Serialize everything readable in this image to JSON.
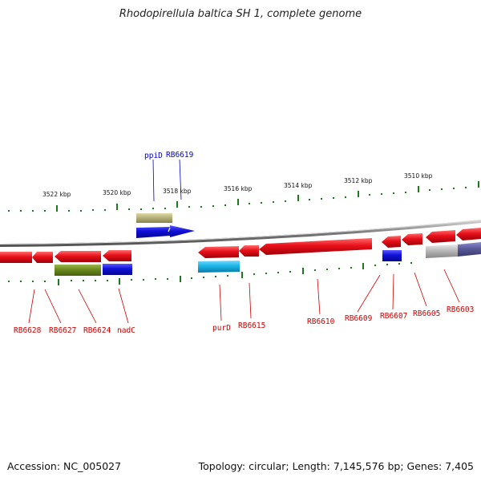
{
  "title": "Rhodopirellula baltica SH 1, complete genome",
  "footer": {
    "accession": "Accession: NC_005027",
    "info": "Topology: circular; Length: 7,145,576 bp; Genes: 7,405"
  },
  "scale": {
    "ticks": [
      "3522 kbp",
      "3520 kbp",
      "3518 kbp",
      "3516 kbp",
      "3514 kbp",
      "3512 kbp",
      "3510 kbp"
    ]
  },
  "genes": {
    "top_labels": [
      "ppiD",
      "RB6619"
    ],
    "bottom_labels": [
      "RB6628",
      "RB6627",
      "RB6624",
      "nadC",
      "purD",
      "RB6615",
      "RB6610",
      "RB6609",
      "RB6607",
      "RB6605",
      "RB6603"
    ]
  },
  "colors": {
    "gene_red": "#e8101a",
    "gene_blue": "#1010d8",
    "gene_olive": "#6b8a1e",
    "gene_khaki": "#b8b27a",
    "gene_cyan": "#19b6e6",
    "gene_grey": "#b8b8b8",
    "gene_slate": "#5a5a9a",
    "tick_green": "#1e7a1e",
    "label_red": "#cc0000",
    "label_blue": "#0000cc"
  }
}
